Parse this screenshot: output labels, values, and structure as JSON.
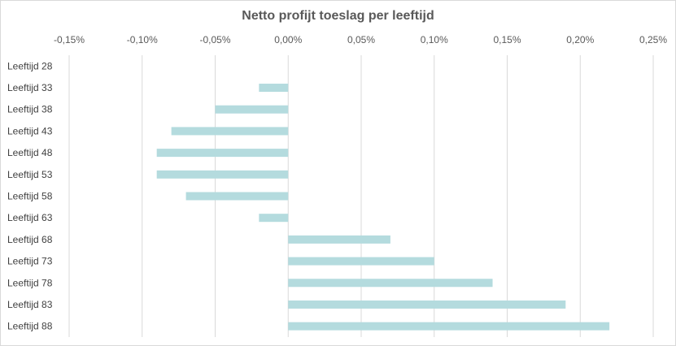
{
  "chart_data": {
    "type": "bar",
    "orientation": "horizontal",
    "title": "Netto profijt toeslag per leeftijd",
    "xlabel": "",
    "ylabel": "",
    "xlim": [
      -0.15,
      0.25
    ],
    "x_ticks": [
      "-0,15%",
      "-0,10%",
      "-0,05%",
      "0,00%",
      "0,05%",
      "0,10%",
      "0,15%",
      "0,20%",
      "0,25%"
    ],
    "x_tick_values": [
      -0.15,
      -0.1,
      -0.05,
      0.0,
      0.05,
      0.1,
      0.15,
      0.2,
      0.25
    ],
    "axis_position": "top",
    "grid": true,
    "bar_color": "#b4dbde",
    "categories": [
      "Leeftijd 28",
      "Leeftijd 33",
      "Leeftijd 38",
      "Leeftijd 43",
      "Leeftijd 48",
      "Leeftijd 53",
      "Leeftijd 58",
      "Leeftijd 63",
      "Leeftijd 68",
      "Leeftijd 73",
      "Leeftijd 78",
      "Leeftijd 83",
      "Leeftijd 88"
    ],
    "values": [
      0.0,
      -0.02,
      -0.05,
      -0.08,
      -0.09,
      -0.09,
      -0.07,
      -0.02,
      0.07,
      0.1,
      0.14,
      0.19,
      0.22
    ]
  }
}
